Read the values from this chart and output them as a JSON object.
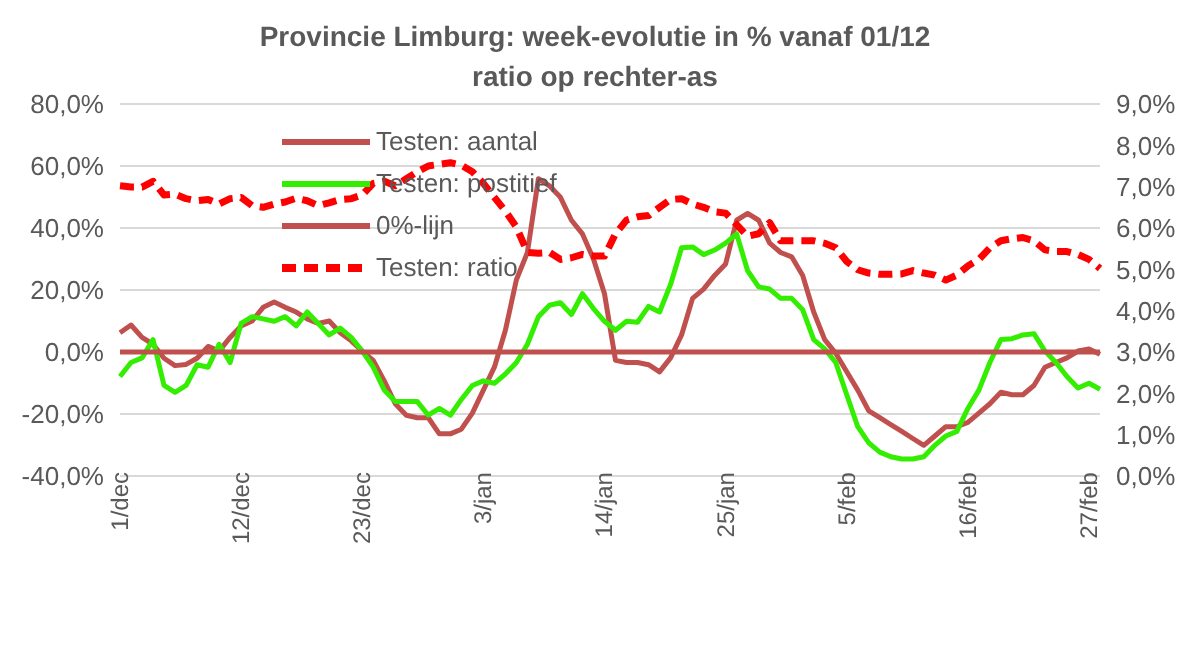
{
  "chart_data": {
    "type": "line",
    "title": "Provincie Limburg: week-evolutie in %  vanaf 01/12",
    "subtitle": "ratio op rechter-as",
    "categories": [
      "1/dec",
      null,
      null,
      null,
      null,
      null,
      null,
      null,
      null,
      null,
      null,
      "12/dec",
      null,
      null,
      null,
      null,
      null,
      null,
      null,
      null,
      null,
      null,
      "23/dec",
      null,
      null,
      null,
      null,
      null,
      null,
      null,
      null,
      null,
      null,
      "3/jan",
      null,
      null,
      null,
      null,
      null,
      null,
      null,
      null,
      null,
      null,
      "14/jan",
      null,
      null,
      null,
      null,
      null,
      null,
      null,
      null,
      null,
      null,
      "25/jan",
      null,
      null,
      null,
      null,
      null,
      null,
      null,
      null,
      null,
      null,
      "5/feb",
      null,
      null,
      null,
      null,
      null,
      null,
      null,
      null,
      null,
      null,
      "16/feb",
      null,
      null,
      null,
      null,
      null,
      null,
      null,
      null,
      null,
      null,
      "27/feb",
      null
    ],
    "series": [
      {
        "name": "Testen: aantal",
        "color": "#c0504d",
        "values": [
          6.2,
          8.7,
          4.7,
          2.5,
          -2,
          -4.4,
          -4,
          -2,
          1.8,
          0.3,
          4.7,
          8.4,
          10,
          14.4,
          16.1,
          14.4,
          12.9,
          10.7,
          9.2,
          10,
          6.2,
          3.6,
          0.3,
          -2.7,
          -9.3,
          -16.7,
          -20.4,
          -21.2,
          -21.2,
          -26.4,
          -26.4,
          -24.9,
          -19.7,
          -12.3,
          -4.9,
          7,
          23.3,
          32.1,
          55.9,
          53.6,
          49.9,
          42.5,
          38.1,
          30,
          18.8,
          -2.7,
          -3.4,
          -3.4,
          -4.1,
          -6.4,
          -1.9,
          5.5,
          17.3,
          20.3,
          24.7,
          28.4,
          42.5,
          44.7,
          42.5,
          35.1,
          32.1,
          30.7,
          24.7,
          12.9,
          4,
          -0.4,
          -6.4,
          -12.3,
          -19,
          -21.2,
          -23.4,
          -25.6,
          -27.9,
          -30.1,
          -27.1,
          -24.1,
          -24.1,
          -22.7,
          -19.7,
          -16.7,
          -13,
          -13.8,
          -13.8,
          -10.8,
          -4.9,
          -3.4,
          -1.9,
          0.3,
          1,
          -0.7
        ]
      },
      {
        "name": "Testen: postitief",
        "color": "#33ee00",
        "values": [
          -7.9,
          -3.4,
          -1.9,
          4,
          -10.8,
          -13,
          -10.8,
          -4.1,
          -4.9,
          2.5,
          -3.4,
          9.2,
          11.4,
          10.7,
          9.9,
          11.4,
          8.4,
          12.9,
          9.2,
          5.5,
          7.7,
          4.7,
          0.3,
          -4.9,
          -12.3,
          -16,
          -16,
          -16,
          -20.4,
          -18.2,
          -20.4,
          -15.3,
          -10.8,
          -9.3,
          -10.1,
          -7.1,
          -3.4,
          2.5,
          11.4,
          15.1,
          15.9,
          12.1,
          18.8,
          14,
          9.9,
          7,
          9.9,
          9.6,
          14.7,
          12.9,
          21.8,
          33.6,
          33.9,
          31.4,
          32.9,
          35.1,
          38.1,
          26.2,
          21,
          20.3,
          17.3,
          17.3,
          13.6,
          4,
          1,
          -3.4,
          -13.8,
          -24.1,
          -29.3,
          -32.3,
          -33.8,
          -34.5,
          -34.5,
          -33.8,
          -30.1,
          -27.1,
          -25.6,
          -18.2,
          -12.3,
          -3.4,
          4,
          4.3,
          5.5,
          5.9,
          0.3,
          -3.4,
          -7.9,
          -11.6,
          -10.1,
          -12
        ]
      },
      {
        "name": "0%-lijn",
        "color": "#c0504d",
        "values": [
          0,
          0,
          0,
          0,
          0,
          0,
          0,
          0,
          0,
          0,
          0,
          0,
          0,
          0,
          0,
          0,
          0,
          0,
          0,
          0,
          0,
          0,
          0,
          0,
          0,
          0,
          0,
          0,
          0,
          0,
          0,
          0,
          0,
          0,
          0,
          0,
          0,
          0,
          0,
          0,
          0,
          0,
          0,
          0,
          0,
          0,
          0,
          0,
          0,
          0,
          0,
          0,
          0,
          0,
          0,
          0,
          0,
          0,
          0,
          0,
          0,
          0,
          0,
          0,
          0,
          0,
          0,
          0,
          0,
          0,
          0,
          0,
          0,
          0,
          0,
          0,
          0,
          0,
          0,
          0,
          0,
          0,
          0,
          0,
          0,
          0,
          0,
          0,
          0,
          0
        ]
      },
      {
        "name": "Testen: ratio",
        "color": "#ff0000",
        "axis": "y2",
        "line_style": "dashed",
        "values": [
          7.02,
          6.99,
          6.99,
          7.13,
          6.8,
          6.82,
          6.71,
          6.66,
          6.69,
          6.58,
          6.71,
          6.74,
          6.54,
          6.5,
          6.58,
          6.63,
          6.72,
          6.66,
          6.54,
          6.61,
          6.69,
          6.71,
          6.8,
          7.08,
          7.13,
          7.02,
          7.19,
          7.36,
          7.5,
          7.54,
          7.58,
          7.52,
          7.36,
          7.08,
          6.74,
          6.41,
          6.02,
          5.41,
          5.39,
          5.41,
          5.24,
          5.28,
          5.36,
          5.32,
          5.32,
          5.86,
          6.19,
          6.27,
          6.3,
          6.5,
          6.69,
          6.71,
          6.58,
          6.5,
          6.39,
          6.36,
          6.08,
          5.8,
          5.86,
          6.13,
          5.69,
          5.69,
          5.69,
          5.69,
          5.63,
          5.52,
          5.19,
          4.99,
          4.91,
          4.88,
          4.88,
          4.89,
          4.97,
          4.91,
          4.86,
          4.74,
          4.86,
          5.08,
          5.24,
          5.52,
          5.69,
          5.74,
          5.77,
          5.69,
          5.47,
          5.43,
          5.43,
          5.36,
          5.24,
          5.02
        ]
      }
    ],
    "ylim": [
      -40,
      80
    ],
    "yticks": [
      {
        "value": -40,
        "label": "-40,0%"
      },
      {
        "value": -20,
        "label": "-20,0%"
      },
      {
        "value": 0,
        "label": "0,0%"
      },
      {
        "value": 20,
        "label": "20,0%"
      },
      {
        "value": 40,
        "label": "40,0%"
      },
      {
        "value": 60,
        "label": "60,0%"
      },
      {
        "value": 80,
        "label": "80,0%"
      }
    ],
    "y2lim": [
      0,
      9
    ],
    "y2ticks": [
      {
        "value": 0,
        "label": "0,0%"
      },
      {
        "value": 1,
        "label": "1,0%"
      },
      {
        "value": 2,
        "label": "2,0%"
      },
      {
        "value": 3,
        "label": "3,0%"
      },
      {
        "value": 4,
        "label": "4,0%"
      },
      {
        "value": 5,
        "label": "5,0%"
      },
      {
        "value": 6,
        "label": "6,0%"
      },
      {
        "value": 7,
        "label": "7,0%"
      },
      {
        "value": 8,
        "label": "8,0%"
      },
      {
        "value": 9,
        "label": "9,0%"
      }
    ],
    "grid": "y",
    "legend": "top left",
    "marker": "none"
  }
}
